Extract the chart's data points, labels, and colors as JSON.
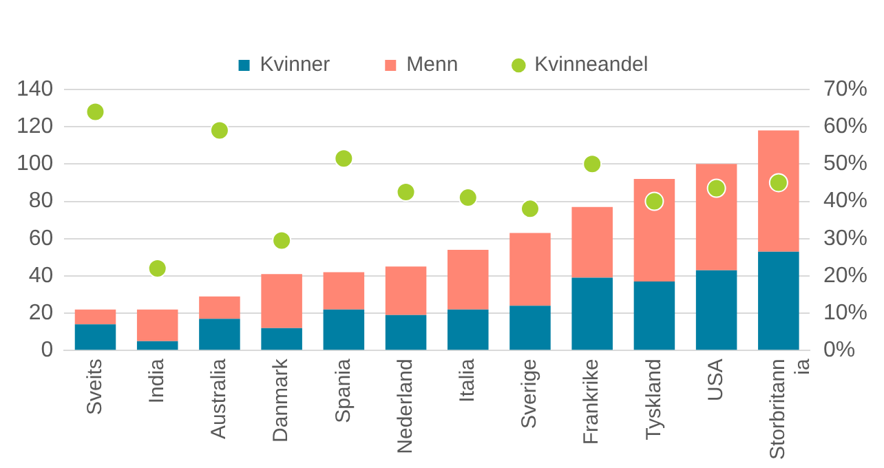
{
  "chart_data": {
    "type": "bar",
    "stacked": true,
    "categories": [
      "Sveits",
      "India",
      "Australia",
      "Danmark",
      "Spania",
      "Nederland",
      "Italia",
      "Sverige",
      "Frankrike",
      "Tyskland",
      "USA",
      "Storbritannia"
    ],
    "series": [
      {
        "name": "Kvinner",
        "color": "#007fa3",
        "values": [
          14,
          5,
          17,
          12,
          22,
          19,
          22,
          24,
          39,
          37,
          43,
          53
        ]
      },
      {
        "name": "Menn",
        "color": "#ff8674",
        "values": [
          8,
          17,
          12,
          29,
          20,
          26,
          32,
          39,
          38,
          55,
          57,
          65
        ]
      },
      {
        "name": "Kvinneandel",
        "type": "scatter",
        "axis": "y2",
        "marker": "circle",
        "color": "#a4cf2e",
        "values": [
          64,
          22,
          59,
          29.5,
          51.5,
          42.5,
          41,
          38,
          50,
          40,
          43.5,
          45
        ]
      }
    ],
    "ylim": [
      0,
      140
    ],
    "yticks": [
      0,
      20,
      40,
      60,
      80,
      100,
      120,
      140
    ],
    "y2lim": [
      0,
      70
    ],
    "y2ticks": [
      {
        "value": 0,
        "label": "0%"
      },
      {
        "value": 10,
        "label": "10%"
      },
      {
        "value": 20,
        "label": "20%"
      },
      {
        "value": 30,
        "label": "30%"
      },
      {
        "value": 40,
        "label": "40%"
      },
      {
        "value": 50,
        "label": "50%"
      },
      {
        "value": 60,
        "label": "60%"
      },
      {
        "value": 70,
        "label": "70%"
      }
    ],
    "grid": "y",
    "legend": "top"
  }
}
